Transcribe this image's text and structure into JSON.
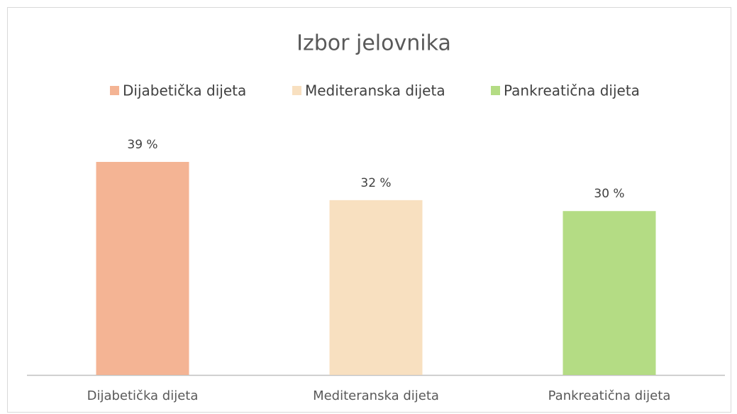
{
  "chart_data": {
    "type": "bar",
    "title": "Izbor jelovnika",
    "categories": [
      "Dijabetička dijeta",
      "Mediteranska dijeta",
      "Pankreatična dijeta"
    ],
    "values": [
      39,
      32,
      30
    ],
    "value_labels": [
      "39 %",
      "32 %",
      "30 %"
    ],
    "colors": [
      "#f4b494",
      "#f8e0c0",
      "#b4dc84"
    ],
    "legend": "top"
  }
}
